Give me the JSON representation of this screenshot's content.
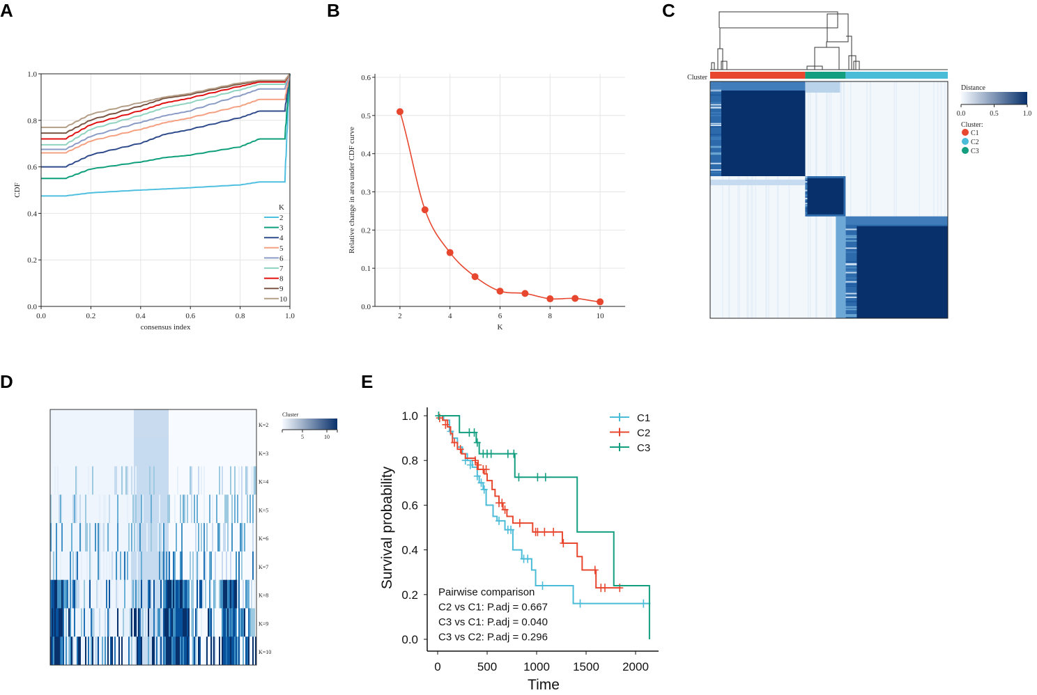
{
  "panel_labels": [
    "A",
    "B",
    "C",
    "D",
    "E"
  ],
  "chart_data": [
    {
      "panel": "A",
      "type": "line",
      "xlabel": "consensus index",
      "ylabel": "CDF",
      "xlim": [
        0,
        1
      ],
      "ylim": [
        0,
        1
      ],
      "xticks": [
        "0.0",
        "0.2",
        "0.4",
        "0.6",
        "0.8",
        "1.0"
      ],
      "yticks": [
        "0.0",
        "0.2",
        "0.4",
        "0.6",
        "0.8",
        "1.0"
      ],
      "grid": true,
      "legend_title": "K",
      "legend_position": "bottom-right",
      "x": [
        0,
        0.1,
        0.2,
        0.4,
        0.5,
        0.6,
        0.8,
        0.88,
        0.98,
        1.0
      ],
      "series": [
        {
          "name": "2",
          "color": "#4fbfe0",
          "values": [
            0.475,
            0.475,
            0.488,
            0.5,
            0.505,
            0.51,
            0.522,
            0.535,
            0.535,
            1
          ]
        },
        {
          "name": "3",
          "color": "#0d9e7a",
          "values": [
            0.55,
            0.55,
            0.59,
            0.62,
            0.64,
            0.65,
            0.685,
            0.72,
            0.72,
            1
          ]
        },
        {
          "name": "4",
          "color": "#2f4b8c",
          "values": [
            0.6,
            0.6,
            0.65,
            0.7,
            0.74,
            0.76,
            0.81,
            0.84,
            0.84,
            1
          ]
        },
        {
          "name": "5",
          "color": "#f4a082",
          "values": [
            0.66,
            0.66,
            0.71,
            0.76,
            0.79,
            0.81,
            0.86,
            0.89,
            0.89,
            1
          ]
        },
        {
          "name": "6",
          "color": "#8a9cc6",
          "values": [
            0.675,
            0.675,
            0.73,
            0.79,
            0.82,
            0.84,
            0.905,
            0.935,
            0.935,
            1
          ]
        },
        {
          "name": "7",
          "color": "#8fd3c0",
          "values": [
            0.695,
            0.695,
            0.76,
            0.82,
            0.855,
            0.875,
            0.93,
            0.955,
            0.955,
            1
          ]
        },
        {
          "name": "8",
          "color": "#e01010",
          "values": [
            0.72,
            0.72,
            0.78,
            0.84,
            0.875,
            0.895,
            0.945,
            0.965,
            0.965,
            1
          ]
        },
        {
          "name": "9",
          "color": "#7a5544",
          "values": [
            0.745,
            0.745,
            0.8,
            0.86,
            0.895,
            0.91,
            0.955,
            0.97,
            0.97,
            1
          ]
        },
        {
          "name": "10",
          "color": "#b49e86",
          "values": [
            0.77,
            0.77,
            0.825,
            0.875,
            0.9,
            0.915,
            0.96,
            0.972,
            0.972,
            1
          ]
        }
      ]
    },
    {
      "panel": "B",
      "type": "line",
      "xlabel": "K",
      "ylabel": "Relative change in area under CDF curve",
      "xlim": [
        1,
        11
      ],
      "ylim": [
        0,
        0.6
      ],
      "xticks": [
        "2",
        "4",
        "6",
        "8",
        "10"
      ],
      "yticks": [
        "0.0",
        "0.1",
        "0.2",
        "0.3",
        "0.4",
        "0.5",
        "0.6"
      ],
      "grid": true,
      "color": "#e8472f",
      "x": [
        2,
        3,
        4,
        5,
        6,
        7,
        8,
        9,
        10
      ],
      "values": [
        0.51,
        0.253,
        0.141,
        0.078,
        0.04,
        0.034,
        0.02,
        0.021,
        0.012
      ]
    },
    {
      "panel": "C",
      "type": "heatmap",
      "annotation_label": "Cluster",
      "legend_title": "Distance",
      "legend_ticks": [
        "0.0",
        "0.5",
        "1.0"
      ],
      "cluster_legend_title": "Cluster:",
      "clusters": [
        {
          "name": "C1",
          "color": "#e8472f",
          "fraction": 0.4
        },
        {
          "name": "C3",
          "color": "#139e80",
          "fraction": 0.17
        },
        {
          "name": "C2",
          "color": "#4bbcd8",
          "fraction": 0.43
        }
      ],
      "legend_clusters": [
        {
          "name": "C1",
          "color": "#e8472f"
        },
        {
          "name": "C2",
          "color": "#4bbcd8"
        },
        {
          "name": "C3",
          "color": "#139e80"
        }
      ]
    },
    {
      "panel": "D",
      "type": "heatmap",
      "row_labels": [
        "K=2",
        "K=3",
        "K=4",
        "K=5",
        "K=6",
        "K=7",
        "K=8",
        "K=9",
        "K=10"
      ],
      "legend_title": "Cluster",
      "legend_ticks": [
        "5",
        "10"
      ]
    },
    {
      "panel": "E",
      "type": "line",
      "xlabel": "Time",
      "ylabel": "Survival probability",
      "xlim": [
        -50,
        2250
      ],
      "ylim": [
        0,
        1
      ],
      "xticks": [
        "0",
        "500",
        "1000",
        "1500",
        "2000"
      ],
      "yticks": [
        "0.0",
        "0.2",
        "0.4",
        "0.6",
        "0.8",
        "1.0"
      ],
      "legend_position": "top-right",
      "annotation": [
        "Pairwise comparison",
        "C2 vs C1: P.adj = 0.667",
        "C3 vs C1: P.adj = 0.040",
        "C3 vs C2: P.adj = 0.296"
      ],
      "series": [
        {
          "name": "C1",
          "color": "#4bbcd8",
          "steps": [
            [
              0,
              1
            ],
            [
              60,
              0.98
            ],
            [
              120,
              0.93
            ],
            [
              150,
              0.9
            ],
            [
              200,
              0.86
            ],
            [
              250,
              0.83
            ],
            [
              300,
              0.8
            ],
            [
              350,
              0.77
            ],
            [
              400,
              0.73
            ],
            [
              420,
              0.7
            ],
            [
              460,
              0.67
            ],
            [
              490,
              0.6
            ],
            [
              560,
              0.55
            ],
            [
              600,
              0.53
            ],
            [
              680,
              0.49
            ],
            [
              760,
              0.4
            ],
            [
              850,
              0.36
            ],
            [
              950,
              0.31
            ],
            [
              990,
              0.24
            ],
            [
              1370,
              0.16
            ]
          ],
          "end": 2150,
          "censor": [
            [
              10,
              1
            ],
            [
              130,
              0.93
            ],
            [
              280,
              0.8
            ],
            [
              330,
              0.78
            ],
            [
              400,
              0.73
            ],
            [
              440,
              0.7
            ],
            [
              470,
              0.67
            ],
            [
              620,
              0.53
            ],
            [
              710,
              0.49
            ],
            [
              740,
              0.49
            ],
            [
              870,
              0.36
            ],
            [
              910,
              0.36
            ],
            [
              1060,
              0.24
            ],
            [
              1440,
              0.16
            ],
            [
              2080,
              0.16
            ]
          ]
        },
        {
          "name": "C2",
          "color": "#e8472f",
          "steps": [
            [
              0,
              1
            ],
            [
              50,
              0.98
            ],
            [
              100,
              0.95
            ],
            [
              130,
              0.92
            ],
            [
              150,
              0.88
            ],
            [
              200,
              0.85
            ],
            [
              240,
              0.83
            ],
            [
              280,
              0.81
            ],
            [
              380,
              0.79
            ],
            [
              400,
              0.76
            ],
            [
              470,
              0.74
            ],
            [
              500,
              0.71
            ],
            [
              550,
              0.67
            ],
            [
              580,
              0.64
            ],
            [
              620,
              0.61
            ],
            [
              660,
              0.58
            ],
            [
              700,
              0.55
            ],
            [
              760,
              0.52
            ],
            [
              960,
              0.48
            ],
            [
              1260,
              0.43
            ],
            [
              1410,
              0.37
            ],
            [
              1460,
              0.31
            ],
            [
              1600,
              0.23
            ]
          ],
          "end": 1850,
          "censor": [
            [
              20,
              0.99
            ],
            [
              80,
              0.96
            ],
            [
              170,
              0.88
            ],
            [
              230,
              0.85
            ],
            [
              380,
              0.8
            ],
            [
              410,
              0.78
            ],
            [
              460,
              0.76
            ],
            [
              490,
              0.76
            ],
            [
              620,
              0.61
            ],
            [
              650,
              0.61
            ],
            [
              680,
              0.58
            ],
            [
              830,
              0.52
            ],
            [
              990,
              0.48
            ],
            [
              1010,
              0.48
            ],
            [
              1080,
              0.48
            ],
            [
              1170,
              0.48
            ],
            [
              1270,
              0.43
            ],
            [
              1590,
              0.31
            ],
            [
              1650,
              0.23
            ],
            [
              1690,
              0.23
            ],
            [
              1840,
              0.23
            ]
          ]
        },
        {
          "name": "C3",
          "color": "#139e80",
          "steps": [
            [
              0,
              1
            ],
            [
              220,
              0.925
            ],
            [
              390,
              0.88
            ],
            [
              420,
              0.83
            ],
            [
              780,
              0.725
            ],
            [
              1410,
              0.48
            ],
            [
              1780,
              0.24
            ],
            [
              2140,
              0.0
            ]
          ],
          "end": 2140,
          "censor": [
            [
              10,
              1
            ],
            [
              320,
              0.925
            ],
            [
              370,
              0.925
            ],
            [
              400,
              0.88
            ],
            [
              460,
              0.83
            ],
            [
              500,
              0.83
            ],
            [
              540,
              0.83
            ],
            [
              710,
              0.83
            ],
            [
              770,
              0.83
            ],
            [
              820,
              0.725
            ],
            [
              1010,
              0.725
            ],
            [
              1090,
              0.725
            ]
          ]
        }
      ]
    }
  ]
}
